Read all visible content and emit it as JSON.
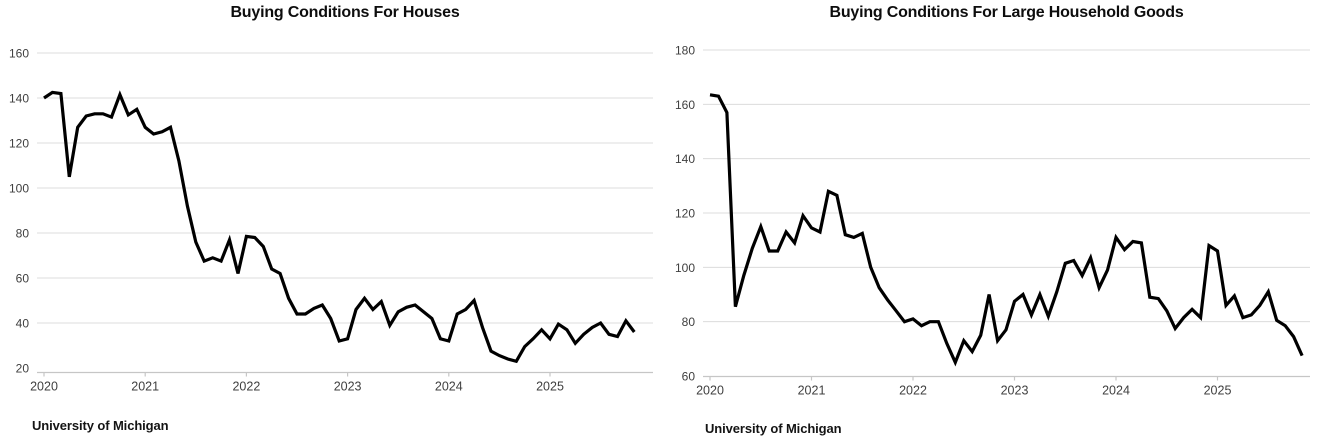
{
  "page": {
    "background": "#ffffff"
  },
  "chart_data": [
    {
      "type": "line",
      "title": "Buying Conditions For Houses",
      "source": "University of Michigan",
      "xlim": [
        "2020-01",
        "2025-11"
      ],
      "x_interval": "month",
      "x_tick_labels": [
        "2020",
        "2021",
        "2022",
        "2023",
        "2024",
        "2025"
      ],
      "y_ticks": [
        20,
        40,
        60,
        80,
        100,
        120,
        140,
        160
      ],
      "ylim": [
        20,
        160
      ],
      "grid": true,
      "legend": false,
      "line_color": "#000000",
      "grid_color": "#dcdcdc",
      "axis_color": "#c6c6c6",
      "tick_label_color": "#3f3f3f",
      "values": [
        140,
        142.5,
        142,
        105,
        127,
        132,
        133,
        133,
        131.5,
        141.5,
        132.5,
        135,
        127,
        124,
        125,
        127,
        112,
        92,
        76,
        67.5,
        69,
        67.5,
        77,
        62,
        78.5,
        78,
        74,
        64,
        62,
        51,
        44,
        44,
        46.5,
        48,
        42,
        32,
        33,
        46,
        51,
        46,
        49.5,
        39,
        45,
        47,
        48,
        45,
        42,
        33,
        32,
        44,
        46,
        50,
        38,
        27.5,
        25.5,
        24,
        23,
        29.5,
        33,
        37,
        33,
        39.5,
        37,
        31,
        35,
        38,
        40,
        35,
        34,
        41,
        36
      ]
    },
    {
      "type": "line",
      "title": "Buying Conditions For Large Household Goods",
      "source": "University of Michigan",
      "xlim": [
        "2020-01",
        "2025-11"
      ],
      "x_interval": "month",
      "x_tick_labels": [
        "2020",
        "2021",
        "2022",
        "2023",
        "2024",
        "2025"
      ],
      "y_ticks": [
        60,
        80,
        100,
        120,
        140,
        160,
        180
      ],
      "ylim": [
        60,
        180
      ],
      "grid": true,
      "legend": false,
      "line_color": "#000000",
      "grid_color": "#dcdcdc",
      "axis_color": "#c6c6c6",
      "tick_label_color": "#3f3f3f",
      "values": [
        163.5,
        163,
        157,
        85.5,
        97,
        107,
        115,
        106,
        106,
        113,
        109,
        119,
        114.5,
        113,
        128,
        126.5,
        112,
        111,
        112.5,
        100,
        92.5,
        88,
        84,
        80,
        81,
        78.5,
        80,
        80,
        72,
        65,
        73,
        69,
        75,
        90,
        73,
        77,
        87.5,
        90,
        82.5,
        90,
        82,
        91,
        101.5,
        102.5,
        97,
        103.5,
        92.5,
        99,
        111,
        106.5,
        109.5,
        109,
        89,
        88.5,
        84,
        77.5,
        81.5,
        84.5,
        81.5,
        108,
        106,
        86,
        89.5,
        81.5,
        82.5,
        86,
        91,
        80.5,
        78.5,
        74.5,
        67.5
      ]
    }
  ]
}
